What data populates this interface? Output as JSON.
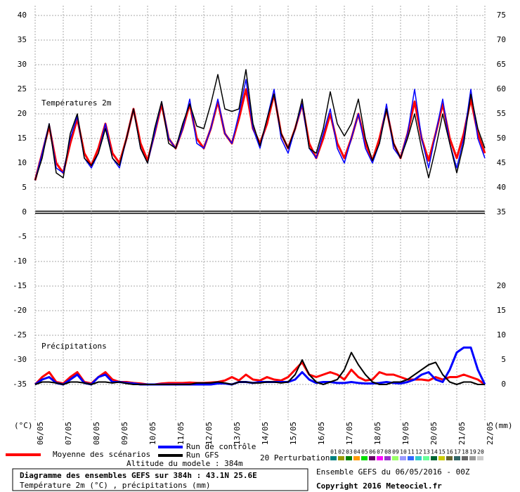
{
  "chart_data": {
    "type": "line",
    "panel_labels": [
      "Températures 2m",
      "Précipitations"
    ],
    "y_label": "(°C)",
    "y2_label": "(mm)",
    "x": [
      0,
      6,
      12,
      18,
      24,
      30,
      36,
      42,
      48,
      54,
      60,
      66,
      72,
      78,
      84,
      90,
      96,
      102,
      108,
      114,
      120,
      126,
      132,
      138,
      144,
      150,
      156,
      162,
      168,
      174,
      180,
      186,
      192,
      198,
      204,
      210,
      216,
      222,
      228,
      234,
      240,
      246,
      252,
      258,
      264,
      270,
      276,
      282,
      288,
      294,
      300,
      306,
      312,
      318,
      324,
      330,
      336,
      342,
      348,
      354,
      360,
      366,
      372,
      378,
      384
    ],
    "xlim": [
      0,
      384
    ],
    "xticks": [
      {
        "value": 0,
        "label": "06/05"
      },
      {
        "value": 24,
        "label": "07/05"
      },
      {
        "value": 48,
        "label": "08/05"
      },
      {
        "value": 72,
        "label": "09/05"
      },
      {
        "value": 96,
        "label": "10/05"
      },
      {
        "value": 120,
        "label": "11/05"
      },
      {
        "value": 144,
        "label": "12/05"
      },
      {
        "value": 168,
        "label": "13/05"
      },
      {
        "value": 192,
        "label": "14/05"
      },
      {
        "value": 216,
        "label": "15/05"
      },
      {
        "value": 240,
        "label": "16/05"
      },
      {
        "value": 264,
        "label": "17/05"
      },
      {
        "value": 288,
        "label": "18/05"
      },
      {
        "value": 312,
        "label": "19/05"
      },
      {
        "value": 336,
        "label": "20/05"
      },
      {
        "value": 360,
        "label": "21/05"
      },
      {
        "value": 384,
        "label": "22/05"
      }
    ],
    "ylim": [
      -35,
      40
    ],
    "yticks": [
      40,
      35,
      30,
      25,
      20,
      15,
      10,
      5,
      0,
      -5,
      -10,
      -15,
      -20,
      -25,
      -30,
      -35
    ],
    "y2lim": [
      0,
      75
    ],
    "y2ticks": [
      75,
      70,
      65,
      60,
      55,
      50,
      45,
      40,
      35,
      20,
      15,
      10,
      5,
      0
    ],
    "grid": true,
    "series": [
      {
        "name": "Moyenne des scénarios",
        "color": "#ff0000",
        "width": 3,
        "values": [
          6.5,
          12,
          17.5,
          10,
          8,
          14,
          19,
          12,
          9.5,
          13,
          18,
          12,
          10,
          15,
          21,
          14,
          10.5,
          16,
          22,
          15,
          13,
          17,
          22,
          15,
          13,
          17,
          22.5,
          16,
          14,
          19,
          25,
          17,
          14,
          18,
          24,
          16,
          13,
          17,
          22,
          14,
          11,
          15,
          20,
          14,
          11,
          15,
          20,
          14,
          10.5,
          15,
          21,
          14,
          11,
          16,
          22.5,
          15,
          10.5,
          16,
          22,
          15,
          11,
          16,
          23,
          16,
          12
        ]
      },
      {
        "name": "Run de contrôle",
        "color": "#0000ff",
        "width": 1.5,
        "values": [
          6.5,
          12,
          18,
          9,
          8,
          15,
          19.5,
          11,
          9,
          12,
          18,
          11,
          9,
          15,
          21,
          13,
          10,
          16,
          22.5,
          15,
          13,
          17,
          23,
          14,
          13,
          17,
          23,
          16,
          14,
          20,
          27,
          17,
          13,
          19,
          25,
          15,
          12,
          17,
          22,
          13,
          11,
          16,
          21,
          13,
          10,
          15,
          20,
          13,
          10,
          14,
          22,
          13,
          11,
          16,
          25,
          15,
          9,
          16,
          23,
          14,
          9,
          15,
          25,
          15,
          11
        ]
      },
      {
        "name": "Run GFS",
        "color": "#000000",
        "width": 1.5,
        "values": [
          6.5,
          11,
          18,
          8,
          7,
          16,
          20,
          11,
          9.5,
          12,
          17,
          11,
          9.5,
          15,
          21,
          13,
          10,
          17,
          22.5,
          14,
          13,
          18,
          22,
          17.5,
          17,
          22,
          28,
          21,
          20.5,
          21,
          29,
          18,
          13.5,
          19,
          24,
          16,
          13,
          17,
          23,
          13,
          12,
          17,
          24.5,
          18,
          15.5,
          18,
          23,
          15,
          10.5,
          14,
          21,
          14,
          11,
          15,
          20,
          13,
          7,
          13,
          20,
          14,
          8,
          14,
          24,
          17,
          13
        ]
      },
      {
        "color": "#ff0000",
        "width": 3,
        "axis": "y2",
        "values": [
          0,
          1.5,
          2.5,
          0.5,
          0.2,
          1.5,
          2.5,
          0.5,
          0.2,
          1.5,
          2.5,
          1,
          0.5,
          0.5,
          0.3,
          0.2,
          0,
          0,
          0.2,
          0.3,
          0.3,
          0.3,
          0.4,
          0.3,
          0.3,
          0.4,
          0.5,
          0.8,
          1.5,
          0.8,
          2,
          1,
          0.8,
          1.5,
          1,
          0.8,
          1.5,
          3,
          4.5,
          2,
          1.5,
          2,
          2.5,
          2,
          1,
          3,
          1.5,
          0.8,
          1,
          2.5,
          2,
          2,
          1.5,
          1,
          1,
          1,
          0.8,
          1.5,
          1,
          1.5,
          1.5,
          2,
          1.5,
          1,
          0
        ]
      },
      {
        "color": "#0000ff",
        "width": 3,
        "axis": "y2",
        "values": [
          0,
          1,
          1.5,
          0.3,
          0,
          1,
          2,
          0.3,
          0,
          1.5,
          2,
          0.5,
          0.5,
          0.3,
          0.2,
          0,
          0,
          0,
          0,
          0,
          0,
          0,
          0,
          0,
          0,
          0,
          0.2,
          0.2,
          0,
          0.5,
          0.5,
          0.3,
          0.5,
          0.5,
          0.5,
          0.5,
          0.5,
          1,
          2.5,
          1,
          0.3,
          0.5,
          0.5,
          0.3,
          0.3,
          0.5,
          0.3,
          0.2,
          0.2,
          0.3,
          0.5,
          0.3,
          0.2,
          0.5,
          1,
          2,
          2.5,
          1,
          0.5,
          3,
          6.5,
          7.5,
          7.5,
          3,
          0
        ]
      },
      {
        "color": "#000000",
        "width": 2,
        "axis": "y2",
        "values": [
          0,
          0.5,
          0.5,
          0.3,
          0,
          0.5,
          0.5,
          0.3,
          0,
          0.5,
          0.5,
          0.3,
          0.5,
          0.2,
          0,
          0,
          0,
          0,
          0,
          0,
          0,
          0,
          0,
          0.3,
          0.3,
          0.3,
          0.5,
          0.3,
          0,
          0.5,
          0.5,
          0.3,
          0.3,
          0.5,
          0.5,
          0.3,
          0.5,
          2,
          5,
          2,
          0.5,
          0,
          0.5,
          1,
          3,
          6.5,
          4,
          2,
          0.5,
          0,
          0,
          0.5,
          0.5,
          1,
          2,
          3,
          4,
          4.5,
          2,
          0.5,
          0,
          0.5,
          0.5,
          0,
          0
        ]
      }
    ],
    "perturbations": {
      "label": "20 Perturbations",
      "members": [
        {
          "label": "01",
          "color": "#008080"
        },
        {
          "label": "02",
          "color": "#999900"
        },
        {
          "label": "03",
          "color": "#008000"
        },
        {
          "label": "04",
          "color": "#ff9900"
        },
        {
          "label": "05",
          "color": "#00dd00"
        },
        {
          "label": "06",
          "color": "#660066"
        },
        {
          "label": "07",
          "color": "#ff00ff"
        },
        {
          "label": "08",
          "color": "#9933cc"
        },
        {
          "label": "09",
          "color": "#99ff66"
        },
        {
          "label": "10",
          "color": "#9999ff"
        },
        {
          "label": "11",
          "color": "#3366ff"
        },
        {
          "label": "12",
          "color": "#33cccc"
        },
        {
          "label": "13",
          "color": "#66ff99"
        },
        {
          "label": "14",
          "color": "#006633"
        },
        {
          "label": "15",
          "color": "#cccc00"
        },
        {
          "label": "16",
          "color": "#666633"
        },
        {
          "label": "17",
          "color": "#336666"
        },
        {
          "label": "18",
          "color": "#666666"
        },
        {
          "label": "19",
          "color": "#999999"
        },
        {
          "label": "20",
          "color": "#cccccc"
        }
      ]
    },
    "altitude": "Altitude du modele : 384m",
    "title": "Diagramme des ensembles GEFS sur 384h : 43.1N 25.6E",
    "subtitle": "Température 2m (°C) , précipitations (mm)",
    "run_info": "Ensemble GEFS du 06/05/2016 - 00Z",
    "copyright": "Copyright 2016 Meteociel.fr"
  }
}
